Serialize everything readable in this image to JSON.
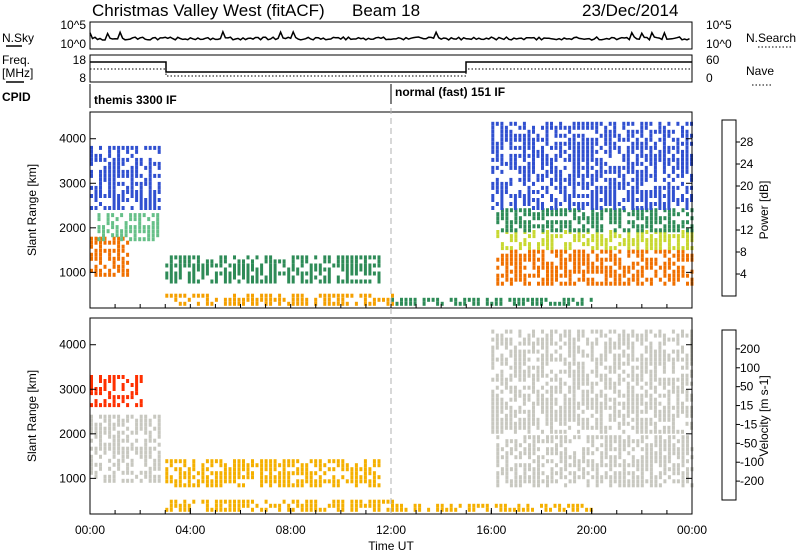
{
  "header": {
    "station": "Christmas Valley West (fitACF)",
    "beam": "Beam 18",
    "date": "23/Dec/2014"
  },
  "strips": {
    "nsky_label": "N.Sky",
    "nsky_top": "10^5",
    "nsky_bottom": "10^0",
    "nsearch_label": "N.Search",
    "nsearch_top": "10^5",
    "nsearch_bottom": "10^0",
    "freq_label": "Freq.",
    "freq_unit": "[MHz]",
    "freq_top": "18",
    "freq_bottom": "8",
    "nave_label": "Nave",
    "nave_top": "60",
    "nave_bottom": "0",
    "cpid_label": "CPID",
    "cpid_first": "themis 3300 IF",
    "cpid_second": "normal (fast) 151 IF"
  },
  "chart_data": [
    {
      "type": "heatmap",
      "panel": "power",
      "ylabel": "Slant Range [km]",
      "xlabel": "",
      "xlim": [
        "00:00",
        "24:00"
      ],
      "ylim": [
        200,
        4600
      ],
      "x_ticks": [
        "00:00",
        "04:00",
        "08:00",
        "12:00",
        "16:00",
        "20:00",
        "00:00"
      ],
      "y_ticks": [
        1000,
        2000,
        3000,
        4000
      ],
      "colorbar": {
        "label": "Power [dB]",
        "ticks": [
          4,
          8,
          12,
          16,
          20,
          24,
          28
        ],
        "range": [
          0,
          30
        ],
        "colors": [
          "#0000ff",
          "#3050d0",
          "#2e8b57",
          "#66c088",
          "#c8d830",
          "#f5a000",
          "#f07000",
          "#ff0000"
        ]
      },
      "regions": [
        {
          "t0": 0.0,
          "t1": 1.6,
          "r0": 900,
          "r1": 1800,
          "level": 26
        },
        {
          "t0": 0.3,
          "t1": 2.8,
          "r0": 1700,
          "r1": 2300,
          "level": 12
        },
        {
          "t0": 0.0,
          "t1": 2.8,
          "r0": 2400,
          "r1": 3800,
          "level": 6
        },
        {
          "t0": 3.0,
          "t1": 11.6,
          "r0": 750,
          "r1": 1350,
          "level": 9
        },
        {
          "t0": 3.0,
          "t1": 12.0,
          "r0": 250,
          "r1": 450,
          "level": 20
        },
        {
          "t0": 12.0,
          "t1": 20.0,
          "r0": 250,
          "r1": 400,
          "level": 8
        },
        {
          "t0": 16.2,
          "t1": 24.0,
          "r0": 700,
          "r1": 1500,
          "level": 27
        },
        {
          "t0": 16.2,
          "t1": 24.0,
          "r0": 1500,
          "r1": 1900,
          "level": 18
        },
        {
          "t0": 16.2,
          "t1": 24.0,
          "r0": 1900,
          "r1": 2400,
          "level": 10
        },
        {
          "t0": 16.0,
          "t1": 24.0,
          "r0": 2400,
          "r1": 4300,
          "level": 5
        }
      ]
    },
    {
      "type": "heatmap",
      "panel": "velocity",
      "ylabel": "Slant Range [km]",
      "xlabel": "Time UT",
      "xlim": [
        "00:00",
        "24:00"
      ],
      "ylim": [
        200,
        4600
      ],
      "x_ticks": [
        "00:00",
        "04:00",
        "08:00",
        "12:00",
        "16:00",
        "20:00",
        "00:00"
      ],
      "y_ticks": [
        1000,
        2000,
        3000,
        4000
      ],
      "colorbar": {
        "label": "Velocity [m s-1]",
        "ticks": [
          200,
          100,
          50,
          15,
          -15,
          -50,
          -100,
          -200
        ],
        "colors": [
          "#2040c0",
          "#3a7cc0",
          "#2e8b57",
          "#66cc44",
          "#c8c8c0",
          "#f5b000",
          "#f07000",
          "#ff3000",
          "#e00000"
        ]
      },
      "regions": [
        {
          "t0": 0.0,
          "t1": 2.8,
          "r0": 900,
          "r1": 2400,
          "level": 0
        },
        {
          "t0": 0.0,
          "t1": 2.0,
          "r0": 2600,
          "r1": 3300,
          "level": -150
        },
        {
          "t0": 3.0,
          "t1": 11.6,
          "r0": 800,
          "r1": 1350,
          "level": -30
        },
        {
          "t0": 3.0,
          "t1": 12.0,
          "r0": 250,
          "r1": 450,
          "level": -30
        },
        {
          "t0": 12.0,
          "t1": 20.0,
          "r0": 250,
          "r1": 400,
          "level": -30
        },
        {
          "t0": 16.2,
          "t1": 24.0,
          "r0": 800,
          "r1": 1900,
          "level": 0
        },
        {
          "t0": 16.0,
          "t1": 24.0,
          "r0": 2000,
          "r1": 4300,
          "level": 0
        }
      ]
    }
  ],
  "colors": {
    "divider": "#b0b0b0"
  }
}
